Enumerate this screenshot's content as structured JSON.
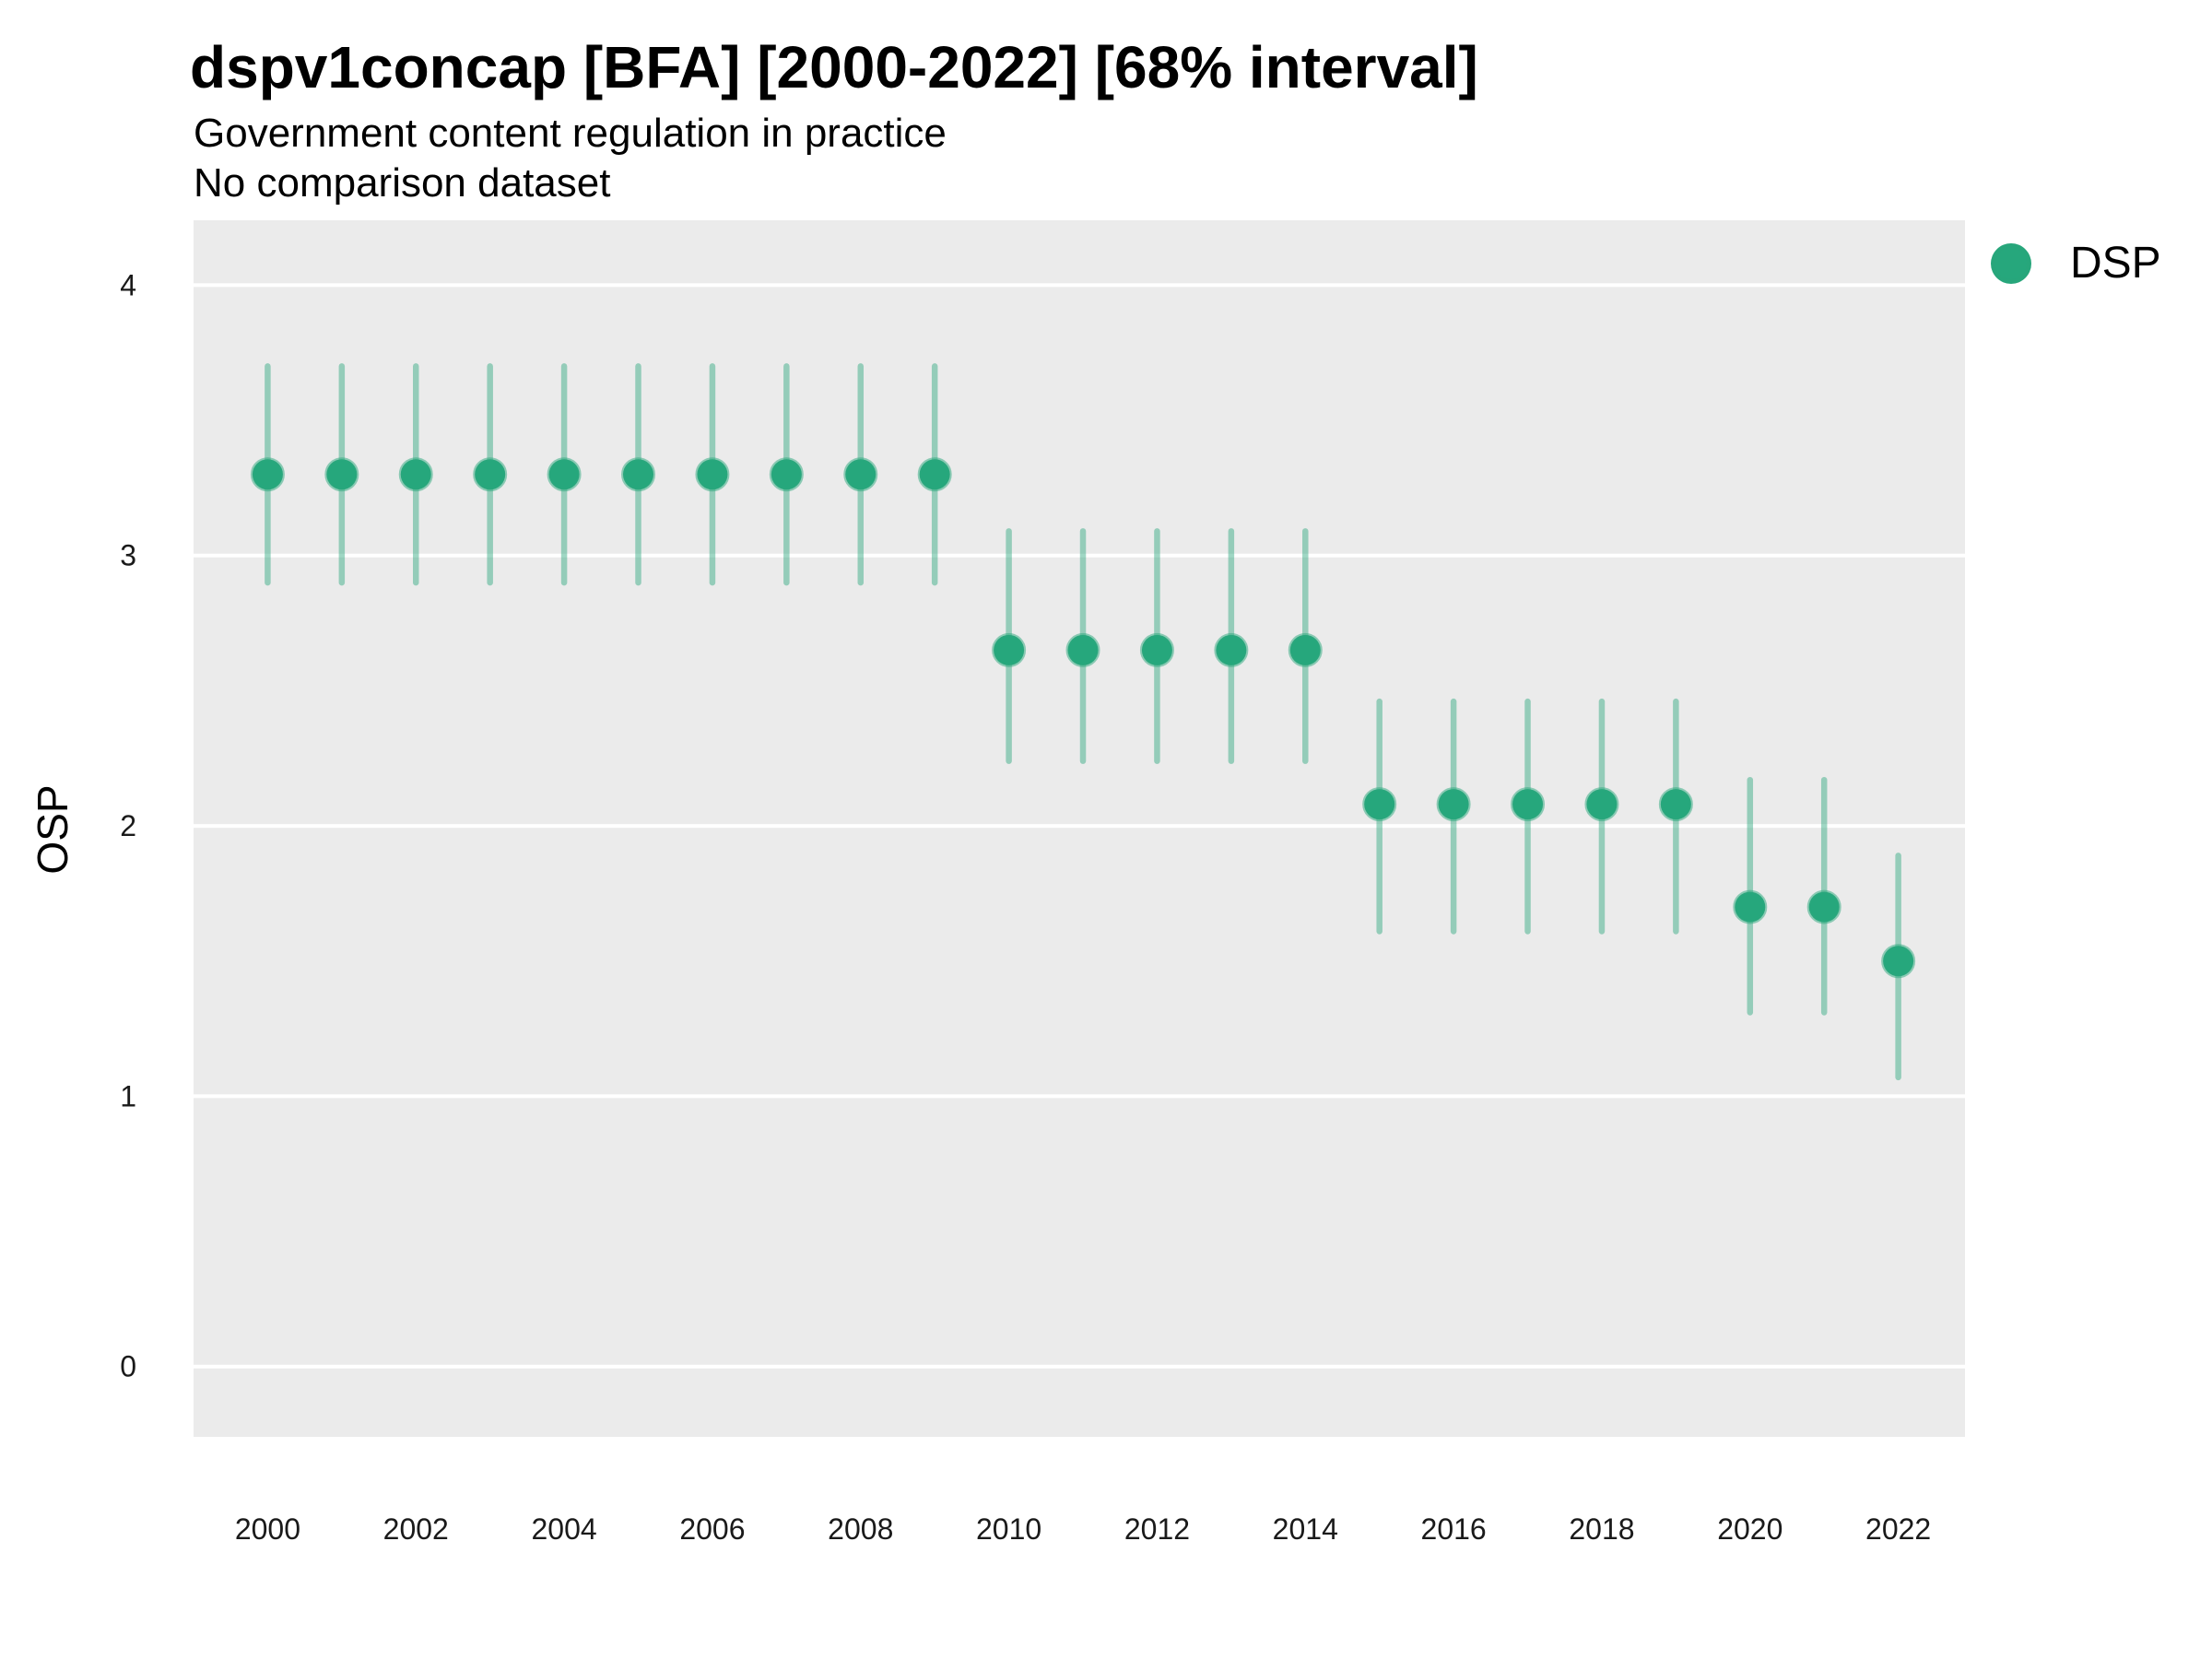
{
  "chart_data": {
    "type": "scatter",
    "variant": "pointrange",
    "title": "dspv1concap [BFA] [2000-2022] [68% interval]",
    "subtitle": "Government content regulation in practice",
    "comparison_note": "No comparison dataset",
    "ylabel": "OSP",
    "xlabel": "",
    "interval_label": "68% interval",
    "grid": "horizontal-major-only",
    "legend_position": "right",
    "legend": {
      "entries": [
        {
          "label": "DSP",
          "color": "#26a77c"
        }
      ]
    },
    "x_ticks": [
      2000,
      2002,
      2004,
      2006,
      2008,
      2010,
      2012,
      2014,
      2016,
      2018,
      2020,
      2022
    ],
    "y_ticks": [
      0,
      1,
      2,
      3,
      4
    ],
    "xlim": [
      1999.0,
      2022.9
    ],
    "ylim": [
      -0.26,
      4.24
    ],
    "series": [
      {
        "name": "DSP",
        "points": [
          {
            "x": 2000,
            "y": 3.3,
            "lower": 2.9,
            "upper": 3.7
          },
          {
            "x": 2001,
            "y": 3.3,
            "lower": 2.9,
            "upper": 3.7
          },
          {
            "x": 2002,
            "y": 3.3,
            "lower": 2.9,
            "upper": 3.7
          },
          {
            "x": 2003,
            "y": 3.3,
            "lower": 2.9,
            "upper": 3.7
          },
          {
            "x": 2004,
            "y": 3.3,
            "lower": 2.9,
            "upper": 3.7
          },
          {
            "x": 2005,
            "y": 3.3,
            "lower": 2.9,
            "upper": 3.7
          },
          {
            "x": 2006,
            "y": 3.3,
            "lower": 2.9,
            "upper": 3.7
          },
          {
            "x": 2007,
            "y": 3.3,
            "lower": 2.9,
            "upper": 3.7
          },
          {
            "x": 2008,
            "y": 3.3,
            "lower": 2.9,
            "upper": 3.7
          },
          {
            "x": 2009,
            "y": 3.3,
            "lower": 2.9,
            "upper": 3.7
          },
          {
            "x": 2010,
            "y": 2.65,
            "lower": 2.24,
            "upper": 3.09
          },
          {
            "x": 2011,
            "y": 2.65,
            "lower": 2.24,
            "upper": 3.09
          },
          {
            "x": 2012,
            "y": 2.65,
            "lower": 2.24,
            "upper": 3.09
          },
          {
            "x": 2013,
            "y": 2.65,
            "lower": 2.24,
            "upper": 3.09
          },
          {
            "x": 2014,
            "y": 2.65,
            "lower": 2.24,
            "upper": 3.09
          },
          {
            "x": 2015,
            "y": 2.08,
            "lower": 1.61,
            "upper": 2.46
          },
          {
            "x": 2016,
            "y": 2.08,
            "lower": 1.61,
            "upper": 2.46
          },
          {
            "x": 2017,
            "y": 2.08,
            "lower": 1.61,
            "upper": 2.46
          },
          {
            "x": 2018,
            "y": 2.08,
            "lower": 1.61,
            "upper": 2.46
          },
          {
            "x": 2019,
            "y": 2.08,
            "lower": 1.61,
            "upper": 2.46
          },
          {
            "x": 2020,
            "y": 1.7,
            "lower": 1.31,
            "upper": 2.17
          },
          {
            "x": 2021,
            "y": 1.7,
            "lower": 1.31,
            "upper": 2.17
          },
          {
            "x": 2022,
            "y": 1.5,
            "lower": 1.07,
            "upper": 1.89
          }
        ]
      }
    ],
    "colors": {
      "point": "#26a77c",
      "point_rim": "rgba(42,167,124,0.5)",
      "interval": "rgba(42,167,124,0.45)",
      "panel_bg": "#ebebeb",
      "gridline": "#ffffff",
      "title_text": "#000000",
      "tick_text": "#1a1a1a"
    }
  }
}
